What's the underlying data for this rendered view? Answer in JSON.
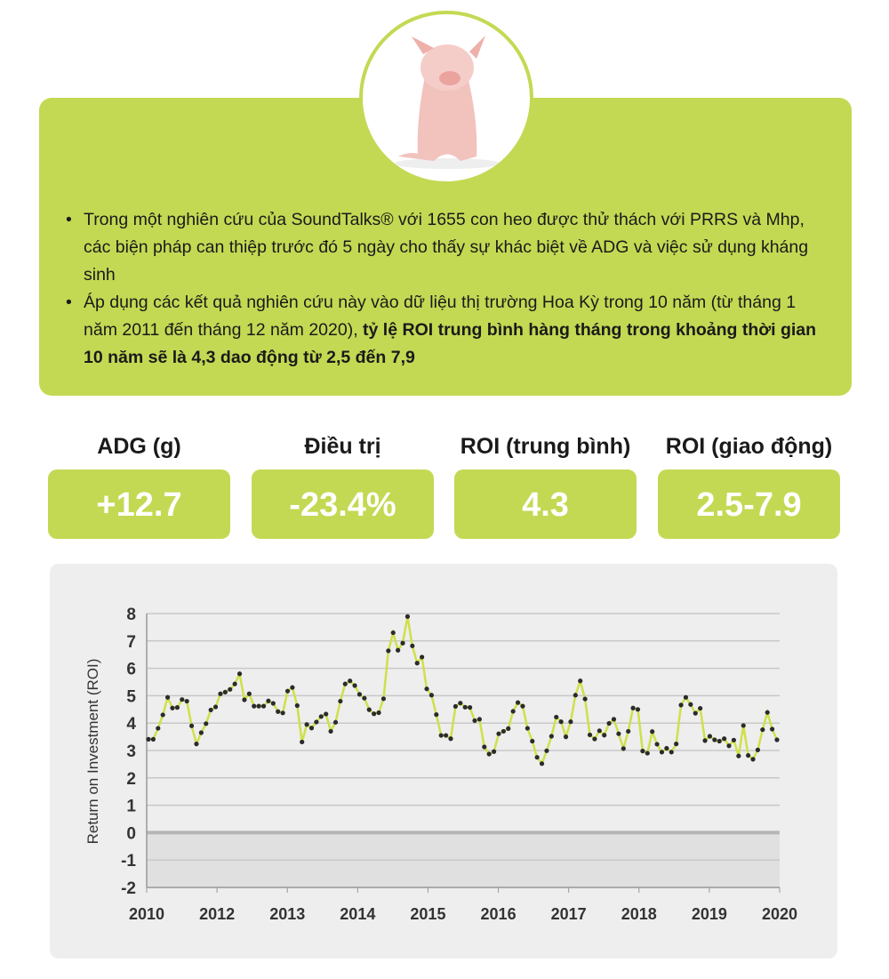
{
  "info_box": {
    "bullets": [
      {
        "text": "Trong một nghiên cứu của  SoundTalks® với 1655 con heo được thử thách với PRRS và Mhp, các biện pháp can thiệp trước đó 5 ngày cho thấy sự khác biệt về ADG và việc sử dụng kháng sinh",
        "bold": ""
      },
      {
        "text": "Áp dụng các kết quả nghiên cứu này vào dữ liệu thị trường Hoa Kỳ trong 10 năm (từ tháng 1 năm 2011 đến tháng 12 năm 2020), ",
        "bold": "tỷ lệ ROI trung bình hàng tháng trong khoảng thời gian 10 năm sẽ là 4,3 dao động từ 2,5 đến 7,9"
      }
    ]
  },
  "stats": [
    {
      "label": "ADG (g)",
      "value": "+12.7"
    },
    {
      "label": "Điều trị",
      "value": "-23.4%"
    },
    {
      "label": "ROI (trung bình)",
      "value": "4.3"
    },
    {
      "label": "ROI (giao động)",
      "value": "2.5-7.9"
    }
  ],
  "colors": {
    "accent": "#c3d953",
    "line": "#cfe04a",
    "marker": "#2b2b2b"
  },
  "chart_data": {
    "type": "line",
    "title": "",
    "xlabel": "",
    "ylabel": "Return on Investment (ROI)",
    "ylim": [
      -2,
      8
    ],
    "yticks": [
      "8",
      "7",
      "6",
      "5",
      "4",
      "3",
      "2",
      "1",
      "0",
      "-1",
      "-2"
    ],
    "xticks": [
      "2010",
      "2012",
      "2013",
      "2014",
      "2015",
      "2016",
      "2017",
      "2018",
      "2019",
      "2020"
    ],
    "grid": true,
    "values": [
      3.41,
      3.41,
      3.81,
      4.3,
      4.94,
      4.55,
      4.57,
      4.86,
      4.8,
      3.9,
      3.24,
      3.65,
      3.98,
      4.48,
      4.59,
      5.07,
      5.13,
      5.23,
      5.43,
      5.8,
      4.85,
      5.07,
      4.62,
      4.62,
      4.62,
      4.81,
      4.72,
      4.42,
      4.37,
      5.17,
      5.3,
      4.64,
      3.31,
      3.95,
      3.82,
      4.04,
      4.24,
      4.33,
      3.7,
      4.03,
      4.8,
      5.43,
      5.54,
      5.37,
      5.05,
      4.91,
      4.49,
      4.34,
      4.38,
      4.89,
      6.64,
      7.3,
      6.66,
      6.92,
      7.89,
      6.82,
      6.19,
      6.41,
      5.25,
      5.02,
      4.31,
      3.55,
      3.55,
      3.43,
      4.61,
      4.73,
      4.58,
      4.57,
      4.09,
      4.14,
      3.13,
      2.87,
      2.96,
      3.61,
      3.7,
      3.8,
      4.43,
      4.75,
      4.62,
      3.81,
      3.34,
      2.75,
      2.52,
      2.99,
      3.52,
      4.22,
      4.05,
      3.5,
      4.05,
      5.02,
      5.54,
      4.88,
      3.57,
      3.42,
      3.72,
      3.56,
      3.99,
      4.14,
      3.61,
      3.07,
      3.7,
      4.55,
      4.5,
      2.98,
      2.9,
      3.69,
      3.23,
      2.94,
      3.08,
      2.94,
      3.24,
      4.66,
      4.94,
      4.68,
      4.36,
      4.54,
      3.36,
      3.52,
      3.39,
      3.34,
      3.43,
      3.17,
      3.38,
      2.8,
      3.91,
      2.82,
      2.68,
      3.02,
      3.76,
      4.39,
      3.78,
      3.39
    ]
  }
}
